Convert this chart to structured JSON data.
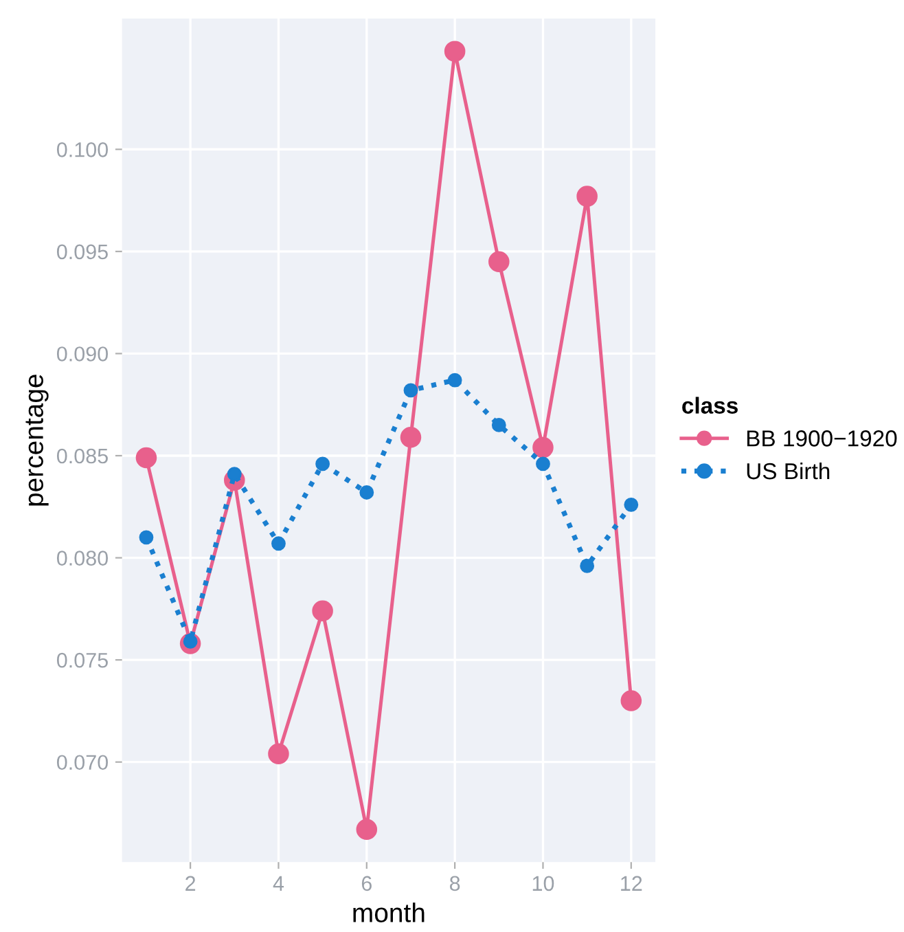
{
  "chart_data": {
    "type": "line",
    "xlabel": "month",
    "ylabel": "percentage",
    "legend_title": "class",
    "x": [
      1,
      2,
      3,
      4,
      5,
      6,
      7,
      8,
      9,
      10,
      11,
      12
    ],
    "series": [
      {
        "name": "BB 1900−1920",
        "color": "#e8608c",
        "line_style": "solid",
        "values": [
          0.0849,
          0.0758,
          0.0838,
          0.0704,
          0.0774,
          0.0667,
          0.0859,
          0.1048,
          0.0945,
          0.0854,
          0.0977,
          0.073
        ]
      },
      {
        "name": "US Birth",
        "color": "#1a7fd0",
        "line_style": "dotted",
        "values": [
          0.081,
          0.0759,
          0.0841,
          0.0807,
          0.0846,
          0.0832,
          0.0882,
          0.0887,
          0.0865,
          0.0846,
          0.0796,
          0.0826
        ]
      }
    ],
    "xlim": [
      0.45,
      12.55
    ],
    "ylim": [
      0.0651,
      0.1064
    ],
    "xticks": [
      2,
      4,
      6,
      8,
      10,
      12
    ],
    "yticks": [
      {
        "value": 0.07,
        "label": "0.070"
      },
      {
        "value": 0.075,
        "label": "0.075"
      },
      {
        "value": 0.08,
        "label": "0.080"
      },
      {
        "value": 0.085,
        "label": "0.085"
      },
      {
        "value": 0.09,
        "label": "0.090"
      },
      {
        "value": 0.095,
        "label": "0.095"
      },
      {
        "value": 0.1,
        "label": "0.100"
      }
    ],
    "grid": true,
    "legend": "right",
    "marker": "circle"
  }
}
